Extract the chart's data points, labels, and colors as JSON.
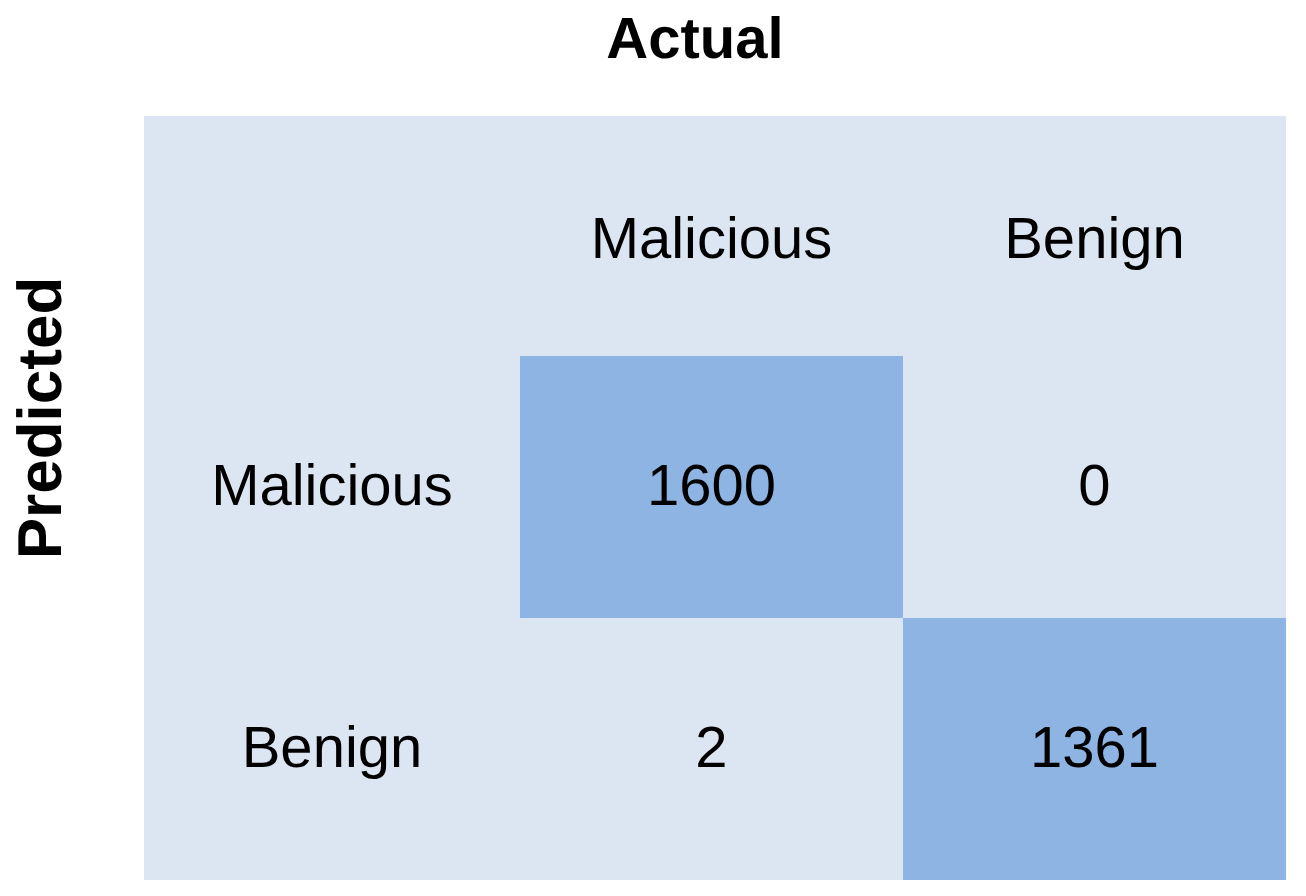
{
  "chart_data": {
    "type": "heatmap",
    "title": "Actual",
    "ylabel": "Predicted",
    "categories": [
      "Malicious",
      "Benign"
    ],
    "y_categories": [
      "Malicious",
      "Benign"
    ],
    "cells": [
      [
        1600,
        0
      ],
      [
        2,
        1361
      ]
    ],
    "colors": [
      "#dce6f2",
      "#8db4e2"
    ],
    "data_labels": true
  }
}
